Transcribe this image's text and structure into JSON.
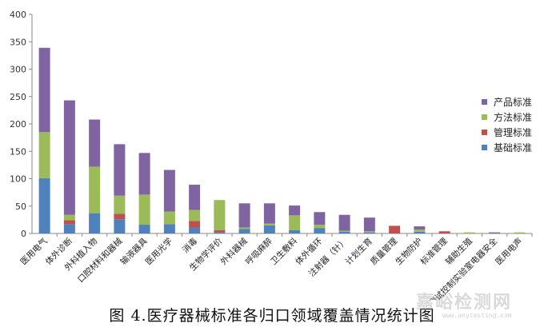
{
  "caption": "图 4.医疗器械标准各归口领域覆盖情况统计图",
  "watermark": "嘉峪检测网",
  "watermark_sub": "www.anytesting.com",
  "colors": {
    "产品标准": "#8064A2",
    "方法标准": "#9BBB59",
    "管理标准": "#C0504D",
    "基础标准": "#4F81BD"
  },
  "chart_data": {
    "type": "bar",
    "stacked": true,
    "title": "",
    "xlabel": "",
    "ylabel": "",
    "ylim": [
      0,
      400
    ],
    "yticks": [
      0,
      50,
      100,
      150,
      200,
      250,
      300,
      350,
      400
    ],
    "grid": false,
    "legend_position": "right",
    "legend_order": [
      "产品标准",
      "方法标准",
      "管理标准",
      "基础标准"
    ],
    "categories": [
      "医用电气",
      "体外诊断",
      "外科植入物",
      "口腔材料和器械",
      "输液器具",
      "医用光学",
      "消毒",
      "生物学评价",
      "外科器械",
      "呼吸麻醉",
      "卫生敷料",
      "体外循环",
      "注射器（针）",
      "计划生育",
      "质量管理",
      "生物防护",
      "标准管理",
      "辅助生殖",
      "测试控制实验室电器安全",
      "医用电声"
    ],
    "series": [
      {
        "name": "基础标准",
        "values": [
          101,
          17,
          37,
          26,
          16,
          17,
          11,
          2,
          8,
          15,
          6,
          10,
          3,
          2,
          0,
          3,
          0,
          0,
          0,
          0
        ]
      },
      {
        "name": "管理标准",
        "values": [
          0,
          7,
          0,
          10,
          0,
          0,
          12,
          4,
          0,
          0,
          0,
          0,
          0,
          0,
          14,
          0,
          4,
          0,
          0,
          0
        ]
      },
      {
        "name": "方法标准",
        "values": [
          84,
          10,
          85,
          33,
          55,
          23,
          20,
          55,
          3,
          3,
          27,
          6,
          2,
          2,
          0,
          4,
          0,
          2,
          0,
          2
        ]
      },
      {
        "name": "产品标准",
        "values": [
          154,
          209,
          86,
          94,
          76,
          76,
          46,
          0,
          44,
          37,
          18,
          23,
          29,
          25,
          0,
          6,
          0,
          0,
          2,
          0
        ]
      }
    ]
  }
}
